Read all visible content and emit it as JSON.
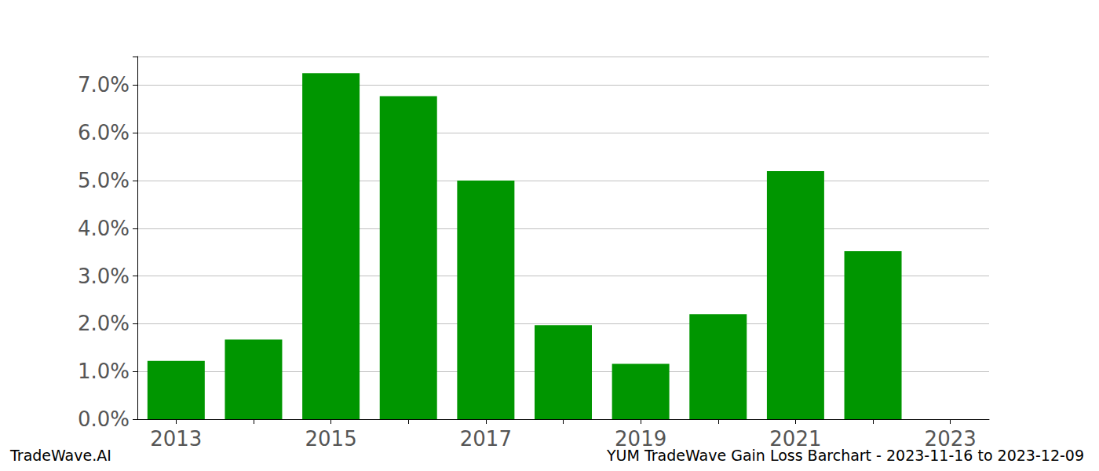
{
  "chart_data": {
    "type": "bar",
    "title": "YUM TradeWave Gain Loss Barchart - 2023-11-16 to 2023-12-09",
    "annotations": [
      "TradeWave.AI"
    ],
    "categories": [
      "2013",
      null,
      "2015",
      null,
      "2017",
      null,
      "2019",
      null,
      "2021",
      null,
      "2023"
    ],
    "values": [
      1.22,
      1.67,
      7.25,
      6.77,
      5.0,
      1.97,
      1.16,
      2.2,
      5.2,
      3.52,
      null
    ],
    "color": "#009600",
    "ylim": [
      0,
      7.6
    ],
    "yticks": [
      {
        "value": 0,
        "label": "0.0%"
      },
      {
        "value": 1,
        "label": "1.0%"
      },
      {
        "value": 2,
        "label": "2.0%"
      },
      {
        "value": 3,
        "label": "3.0%"
      },
      {
        "value": 4,
        "label": "4.0%"
      },
      {
        "value": 5,
        "label": "5.0%"
      },
      {
        "value": 6,
        "label": "6.0%"
      },
      {
        "value": 7,
        "label": "7.0%"
      }
    ],
    "grid": true
  }
}
